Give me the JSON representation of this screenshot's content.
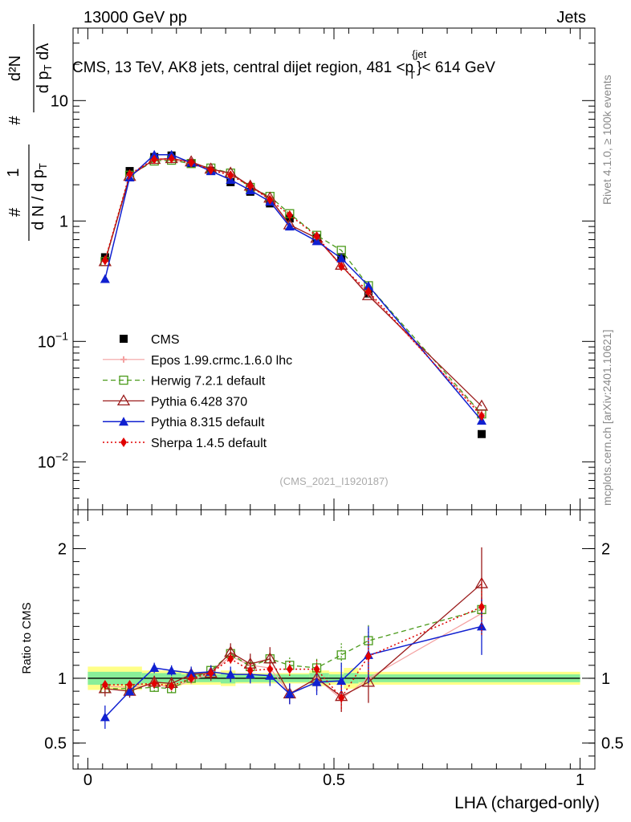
{
  "header": {
    "left": "13000 GeV pp",
    "right": "Jets",
    "title": "CMS, 13 TeV, AK8 jets, central dijet region, 481 <p",
    "title_sup": "{jet",
    "title_sub": "T",
    "title_end": "}< 614 GeV",
    "analysis_id": "(CMS_2021_I1920187)",
    "side_rivet": "Rivet 4.1.0, ≥ 100k events",
    "side_mcplots": "mcplots.cern.ch [arXiv:2401.10621]"
  },
  "chart_data": {
    "type": "line",
    "xlabel": "LHA (charged-only)",
    "ylabel_main": "1/dN/dpT dN/dpT dlambda",
    "ylabel_ratio": "Ratio to CMS",
    "xlim": [
      -0.03,
      1.03
    ],
    "main": {
      "yscale": "log",
      "ylim": [
        0.004,
        40
      ],
      "yticks": [
        {
          "value": 0.01,
          "base": "10",
          "exp": "−2"
        },
        {
          "value": 0.1,
          "base": "10",
          "exp": "−1"
        },
        {
          "value": 1,
          "base": "1",
          "exp": ""
        },
        {
          "value": 10,
          "base": "10",
          "exp": ""
        }
      ]
    },
    "ratio": {
      "ylim": [
        0.3,
        2.3
      ],
      "yticks": [
        0.5,
        1,
        2
      ],
      "ytick_labels": [
        "0.5",
        "1",
        "2"
      ]
    },
    "xticks": [
      0,
      0.5,
      1
    ],
    "xtick_labels": [
      "0",
      "0.5",
      "1"
    ],
    "x": [
      0.035,
      0.085,
      0.135,
      0.17,
      0.21,
      0.25,
      0.29,
      0.33,
      0.37,
      0.41,
      0.465,
      0.515,
      0.57,
      0.8
    ],
    "data_band": {
      "edges": [
        0.0,
        0.11,
        0.19,
        0.27,
        0.3,
        0.45,
        0.49,
        0.52,
        0.55,
        1.0
      ],
      "inner": [
        0.05,
        0.04,
        0.03,
        0.04,
        0.03,
        0.04,
        0.03,
        0.04,
        0.03
      ],
      "outer": [
        0.09,
        0.06,
        0.05,
        0.06,
        0.04,
        0.06,
        0.05,
        0.08,
        0.05
      ]
    },
    "series": [
      {
        "name": "CMS",
        "values": [
          0.5,
          2.6,
          3.4,
          3.5,
          3.0,
          2.6,
          2.1,
          1.75,
          1.4,
          1.05,
          0.72,
          0.5,
          0.25,
          0.017
        ]
      },
      {
        "name": "Epos 1.99.crmc.1.6.0 lhc",
        "color": "#f4a0a0",
        "values": [
          0.47,
          2.4,
          3.2,
          3.25,
          2.95,
          2.7,
          2.45,
          1.95,
          1.5,
          0.93,
          0.72,
          0.42,
          0.25,
          0.025
        ],
        "ratio": [
          0.94,
          0.93,
          0.95,
          0.93,
          0.98,
          1.04,
          1.17,
          1.1,
          1.08,
          0.88,
          1.0,
          0.84,
          1.0,
          1.5
        ]
      },
      {
        "name": "Herwig 7.2.1 default",
        "color": "#4a9a1a",
        "values": [
          0.46,
          2.4,
          3.15,
          3.2,
          3.0,
          2.75,
          2.5,
          1.9,
          1.6,
          1.15,
          0.76,
          0.57,
          0.29,
          0.025
        ],
        "ratio": [
          0.92,
          0.92,
          0.93,
          0.92,
          1.0,
          1.06,
          1.19,
          1.09,
          1.15,
          1.1,
          1.08,
          1.18,
          1.29,
          1.53
        ],
        "ratio_err": [
          0.03,
          0.03,
          0.03,
          0.03,
          0.03,
          0.04,
          0.04,
          0.05,
          0.05,
          0.06,
          0.07,
          0.09,
          0.12,
          0.2
        ]
      },
      {
        "name": "Pythia 6.428 370",
        "color": "#9b1c1c",
        "values": [
          0.46,
          2.35,
          3.25,
          3.3,
          3.1,
          2.7,
          2.5,
          1.95,
          1.55,
          0.93,
          0.72,
          0.43,
          0.24,
          0.029
        ],
        "ratio": [
          0.92,
          0.9,
          0.97,
          0.96,
          1.03,
          1.04,
          1.2,
          1.11,
          1.15,
          0.88,
          1.0,
          0.86,
          0.97,
          1.73
        ],
        "ratio_err": [
          0.06,
          0.05,
          0.05,
          0.05,
          0.05,
          0.06,
          0.07,
          0.08,
          0.09,
          0.08,
          0.1,
          0.12,
          0.16,
          0.28
        ]
      },
      {
        "name": "Pythia 8.315 default",
        "color": "#1020d0",
        "values": [
          0.33,
          2.3,
          3.55,
          3.55,
          3.05,
          2.6,
          2.2,
          1.8,
          1.45,
          0.9,
          0.68,
          0.49,
          0.29,
          0.022
        ],
        "ratio": [
          0.7,
          0.9,
          1.08,
          1.06,
          1.04,
          1.05,
          1.03,
          1.03,
          1.02,
          0.88,
          0.97,
          0.98,
          1.18,
          1.4
        ],
        "ratio_err": [
          0.09,
          0.04,
          0.04,
          0.04,
          0.05,
          0.05,
          0.06,
          0.07,
          0.08,
          0.08,
          0.1,
          0.14,
          0.22,
          0.22
        ]
      },
      {
        "name": "Sherpa 1.4.5 default",
        "color": "#e00000",
        "values": [
          0.47,
          2.45,
          3.25,
          3.3,
          3.05,
          2.65,
          2.4,
          1.95,
          1.5,
          1.12,
          0.75,
          0.42,
          0.26,
          0.024
        ],
        "ratio": [
          0.95,
          0.95,
          0.96,
          0.94,
          1.0,
          1.04,
          1.15,
          1.06,
          1.07,
          1.07,
          1.07,
          0.85,
          1.17,
          1.55
        ],
        "ratio_err": [
          0.03,
          0.03,
          0.03,
          0.03,
          0.03,
          0.04,
          0.05,
          0.05,
          0.06,
          0.06,
          0.07,
          0.1,
          0.14,
          0.22
        ]
      }
    ]
  }
}
